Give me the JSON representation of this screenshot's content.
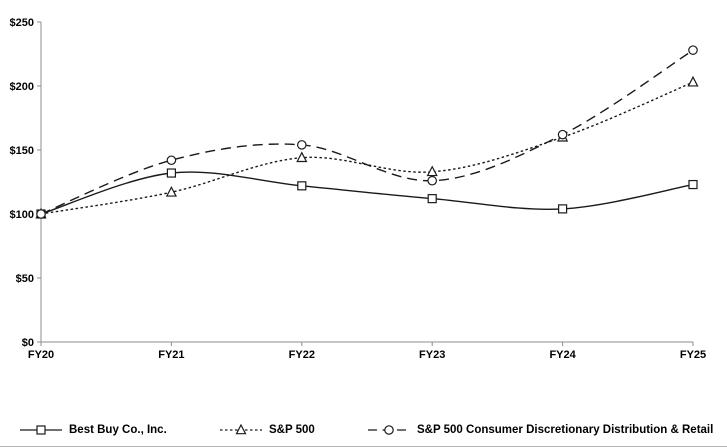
{
  "chart_data": {
    "type": "line",
    "title": "",
    "xlabel": "",
    "ylabel": "",
    "categories": [
      "FY20",
      "FY21",
      "FY22",
      "FY23",
      "FY24",
      "FY25"
    ],
    "series": [
      {
        "name": "Best Buy Co., Inc.",
        "values": [
          100,
          132,
          122,
          112,
          104,
          123
        ],
        "line": "solid",
        "marker": "square"
      },
      {
        "name": "S&P 500",
        "values": [
          100,
          117,
          144,
          133,
          160,
          203
        ],
        "line": "dotted",
        "marker": "triangle"
      },
      {
        "name": "S&P 500 Consumer Discretionary Distribution & Retail",
        "values": [
          100,
          142,
          154,
          126,
          162,
          228
        ],
        "line": "dashed",
        "marker": "circle"
      }
    ],
    "y_tick_labels": [
      "$0",
      "$50",
      "$100",
      "$150",
      "$200",
      "$250"
    ],
    "y_tick_values": [
      0,
      50,
      100,
      150,
      200,
      250
    ],
    "ylim": [
      0,
      250
    ],
    "grid": false,
    "legend_position": "bottom",
    "colors": {
      "series_stroke": "#1a1a1a",
      "axis": "#8c8c8c",
      "label_text": "#000000",
      "marker_fill": "#ffffff"
    }
  },
  "legend": {
    "items": [
      {
        "label": "Best Buy Co., Inc."
      },
      {
        "label": "S&P 500"
      },
      {
        "label": "S&P 500 Consumer Discretionary Distribution & Retail"
      }
    ]
  }
}
